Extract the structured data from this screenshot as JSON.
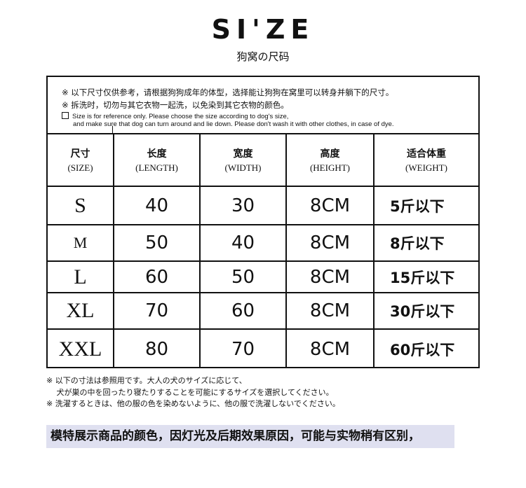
{
  "header": {
    "title": "SI'ZE",
    "subtitle": "狗窝の尺码"
  },
  "notes": {
    "cn1": "※ 以下尺寸仅供参考，请根据狗狗成年的体型，选择能让狗狗在窝里可以转身并躺下的尺寸。",
    "cn2": "※ 拆洗时，切勿与其它衣物一起洗，以免染到其它衣物的颜色。",
    "en1": "Size is for reference only. Please choose the size according to dog's size,",
    "en2": "and make sure that dog can turn around and lie down. Please don't wash it with other clothes, in case of dye."
  },
  "table": {
    "columns": [
      {
        "cn": "尺寸",
        "en": "(SIZE)"
      },
      {
        "cn": "长度",
        "en": "(LENGTH)"
      },
      {
        "cn": "宽度",
        "en": "(WIDTH)"
      },
      {
        "cn": "高度",
        "en": "(HEIGHT)"
      },
      {
        "cn": "适合体重",
        "en": "(WEIGHT)"
      }
    ],
    "rows": [
      [
        "S",
        "40",
        "30",
        "8CM",
        "5斤以下"
      ],
      [
        "M",
        "50",
        "40",
        "8CM",
        "8斤以下"
      ],
      [
        "L",
        "60",
        "50",
        "8CM",
        "15斤以下"
      ],
      [
        "XL",
        "70",
        "60",
        "8CM",
        "30斤以下"
      ],
      [
        "XXL",
        "80",
        "70",
        "8CM",
        "60斤以下"
      ]
    ]
  },
  "jp_notes": [
    "※ 以下の寸法は参照用です。大人の犬のサイズに応じて、",
    "　 犬が巣の中を回ったり寝たりすることを可能にするサイズを選択してください。",
    "※ 洗濯するときは、他の服の色を染めないように、他の服で洗濯しないでください。"
  ],
  "banner": "模特展示商品的颜色，因灯光及后期效果原因，可能与实物稍有区别，"
}
